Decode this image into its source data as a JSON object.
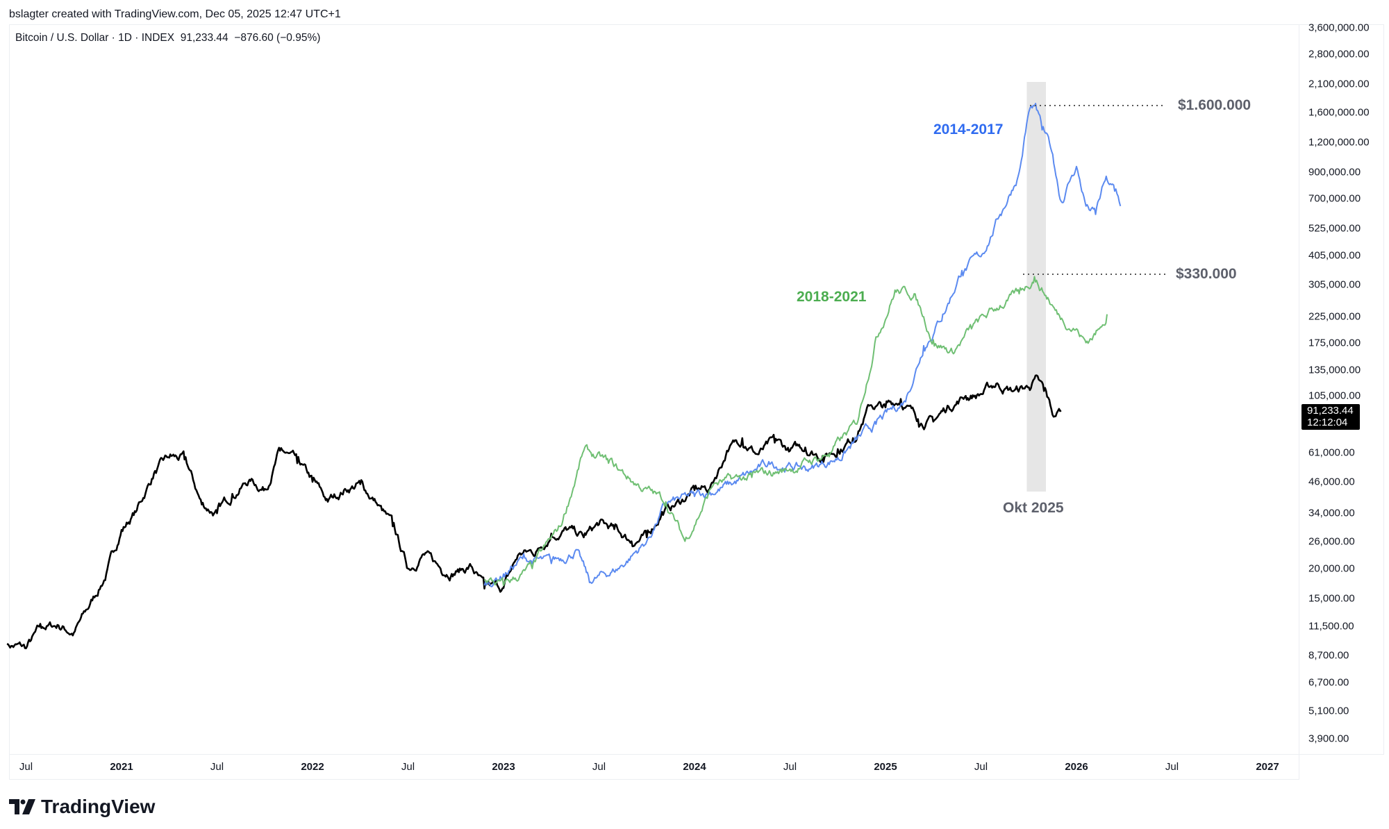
{
  "header": {
    "credit": "bslagter created with TradingView.com, Dec 05, 2025 12:47 UTC+1",
    "legend": "Bitcoin / U.S. Dollar · 1D · INDEX  91,233.44  −876.60 (−0.95%)"
  },
  "price_tag": {
    "price": "91,233.44",
    "countdown": "12:12:04"
  },
  "footer": {
    "logo_text": "TradingView"
  },
  "colors": {
    "btc": "#000000",
    "blue": "#5b8af0",
    "green": "#6fbf73",
    "blue_text": "#2f6bf0",
    "green_text": "#4cad50",
    "gray_text": "#5d606b",
    "band": "#e6e6e6"
  },
  "chart_data": {
    "type": "line",
    "title": "Bitcoin / U.S. Dollar · 1D · INDEX",
    "yscale": "log",
    "ylim": [
      3500,
      3800000
    ],
    "xlim": [
      2020.35,
      2027.1
    ],
    "y_ticks": [
      {
        "v": 3600000,
        "l": "3,600,000.00"
      },
      {
        "v": 2800000,
        "l": "2,800,000.00"
      },
      {
        "v": 2100000,
        "l": "2,100,000.00"
      },
      {
        "v": 1600000,
        "l": "1,600,000.00"
      },
      {
        "v": 1200000,
        "l": "1,200,000.00"
      },
      {
        "v": 900000,
        "l": "900,000.00"
      },
      {
        "v": 700000,
        "l": "700,000.00"
      },
      {
        "v": 525000,
        "l": "525,000.00"
      },
      {
        "v": 405000,
        "l": "405,000.00"
      },
      {
        "v": 305000,
        "l": "305,000.00"
      },
      {
        "v": 225000,
        "l": "225,000.00"
      },
      {
        "v": 175000,
        "l": "175,000.00"
      },
      {
        "v": 135000,
        "l": "135,000.00"
      },
      {
        "v": 105000,
        "l": "105,000.00"
      },
      {
        "v": 61000,
        "l": "61,000.00"
      },
      {
        "v": 46000,
        "l": "46,000.00"
      },
      {
        "v": 34000,
        "l": "34,000.00"
      },
      {
        "v": 26000,
        "l": "26,000.00"
      },
      {
        "v": 20000,
        "l": "20,000.00"
      },
      {
        "v": 15000,
        "l": "15,000.00"
      },
      {
        "v": 11500,
        "l": "11,500.00"
      },
      {
        "v": 8700,
        "l": "8,700.00"
      },
      {
        "v": 6700,
        "l": "6,700.00"
      },
      {
        "v": 5100,
        "l": "5,100.00"
      },
      {
        "v": 3900,
        "l": "3,900.00"
      }
    ],
    "x_ticks": [
      {
        "t": 2020.5,
        "l": "Jul",
        "year": false
      },
      {
        "t": 2021,
        "l": "2021",
        "year": true
      },
      {
        "t": 2021.5,
        "l": "Jul",
        "year": false
      },
      {
        "t": 2022,
        "l": "2022",
        "year": true
      },
      {
        "t": 2022.5,
        "l": "Jul",
        "year": false
      },
      {
        "t": 2023,
        "l": "2023",
        "year": true
      },
      {
        "t": 2023.5,
        "l": "Jul",
        "year": false
      },
      {
        "t": 2024,
        "l": "2024",
        "year": true
      },
      {
        "t": 2024.5,
        "l": "Jul",
        "year": false
      },
      {
        "t": 2025,
        "l": "2025",
        "year": true
      },
      {
        "t": 2025.5,
        "l": "Jul",
        "year": false
      },
      {
        "t": 2026,
        "l": "2026",
        "year": true
      },
      {
        "t": 2026.5,
        "l": "Jul",
        "year": false
      },
      {
        "t": 2027,
        "l": "2027",
        "year": true
      }
    ],
    "series": [
      {
        "name": "BTCUSD",
        "color_key": "btc",
        "points": [
          [
            2020.4,
            9700
          ],
          [
            2020.5,
            9300
          ],
          [
            2020.58,
            11300
          ],
          [
            2020.67,
            11600
          ],
          [
            2020.75,
            10800
          ],
          [
            2020.83,
            13800
          ],
          [
            2020.92,
            19000
          ],
          [
            2021.0,
            29000
          ],
          [
            2021.08,
            35000
          ],
          [
            2021.17,
            50000
          ],
          [
            2021.25,
            58000
          ],
          [
            2021.33,
            57000
          ],
          [
            2021.42,
            37000
          ],
          [
            2021.5,
            34000
          ],
          [
            2021.58,
            41000
          ],
          [
            2021.67,
            47000
          ],
          [
            2021.75,
            43000
          ],
          [
            2021.83,
            62000
          ],
          [
            2021.92,
            55000
          ],
          [
            2022.0,
            46000
          ],
          [
            2022.08,
            38000
          ],
          [
            2022.17,
            43000
          ],
          [
            2022.25,
            45000
          ],
          [
            2022.33,
            38000
          ],
          [
            2022.42,
            30000
          ],
          [
            2022.5,
            20000
          ],
          [
            2022.58,
            23000
          ],
          [
            2022.67,
            20000
          ],
          [
            2022.75,
            19500
          ],
          [
            2022.83,
            20500
          ],
          [
            2022.9,
            16500
          ],
          [
            2023.0,
            16600
          ],
          [
            2023.08,
            23000
          ],
          [
            2023.17,
            23500
          ],
          [
            2023.25,
            28000
          ],
          [
            2023.33,
            29000
          ],
          [
            2023.42,
            27000
          ],
          [
            2023.5,
            30500
          ],
          [
            2023.58,
            29200
          ],
          [
            2023.67,
            26000
          ],
          [
            2023.75,
            27000
          ],
          [
            2023.83,
            34500
          ],
          [
            2023.92,
            37700
          ],
          [
            2024.0,
            42500
          ],
          [
            2024.08,
            43000
          ],
          [
            2024.17,
            62000
          ],
          [
            2024.25,
            70000
          ],
          [
            2024.33,
            60000
          ],
          [
            2024.42,
            67000
          ],
          [
            2024.5,
            62000
          ],
          [
            2024.58,
            64000
          ],
          [
            2024.67,
            59000
          ],
          [
            2024.75,
            63000
          ],
          [
            2024.83,
            70000
          ],
          [
            2024.92,
            96000
          ],
          [
            2025.0,
            94000
          ],
          [
            2025.08,
            102000
          ],
          [
            2025.17,
            84000
          ],
          [
            2025.25,
            82000
          ],
          [
            2025.33,
            95000
          ],
          [
            2025.42,
            105000
          ],
          [
            2025.5,
            107000
          ],
          [
            2025.58,
            118000
          ],
          [
            2025.67,
            110000
          ],
          [
            2025.75,
            114000
          ],
          [
            2025.78,
            124000
          ],
          [
            2025.83,
            110000
          ],
          [
            2025.88,
            86000
          ],
          [
            2025.92,
            91233
          ]
        ]
      },
      {
        "name": "2014-2017",
        "color_key": "blue",
        "points": [
          [
            2022.9,
            17000
          ],
          [
            2023.0,
            19000
          ],
          [
            2023.1,
            22000
          ],
          [
            2023.25,
            21000
          ],
          [
            2023.38,
            24000
          ],
          [
            2023.45,
            17500
          ],
          [
            2023.6,
            20000
          ],
          [
            2023.75,
            26000
          ],
          [
            2023.85,
            37000
          ],
          [
            2024.0,
            40000
          ],
          [
            2024.2,
            45000
          ],
          [
            2024.4,
            55000
          ],
          [
            2024.6,
            52000
          ],
          [
            2024.75,
            58000
          ],
          [
            2024.95,
            80000
          ],
          [
            2025.1,
            100000
          ],
          [
            2025.2,
            170000
          ],
          [
            2025.3,
            230000
          ],
          [
            2025.4,
            350000
          ],
          [
            2025.5,
            400000
          ],
          [
            2025.6,
            600000
          ],
          [
            2025.7,
            900000
          ],
          [
            2025.75,
            1600000
          ],
          [
            2025.78,
            1700000
          ],
          [
            2025.82,
            1350000
          ],
          [
            2025.87,
            1100000
          ],
          [
            2025.92,
            680000
          ],
          [
            2025.97,
            850000
          ],
          [
            2026.0,
            950000
          ],
          [
            2026.05,
            650000
          ],
          [
            2026.1,
            600000
          ],
          [
            2026.15,
            830000
          ],
          [
            2026.2,
            750000
          ],
          [
            2026.23,
            650000
          ]
        ]
      },
      {
        "name": "2018-2021",
        "color_key": "green",
        "points": [
          [
            2022.9,
            18000
          ],
          [
            2023.0,
            17000
          ],
          [
            2023.15,
            20000
          ],
          [
            2023.3,
            30000
          ],
          [
            2023.42,
            62000
          ],
          [
            2023.55,
            55000
          ],
          [
            2023.7,
            45000
          ],
          [
            2023.85,
            38000
          ],
          [
            2023.95,
            26000
          ],
          [
            2024.1,
            45000
          ],
          [
            2024.3,
            48000
          ],
          [
            2024.5,
            52000
          ],
          [
            2024.7,
            60000
          ],
          [
            2024.85,
            80000
          ],
          [
            2024.95,
            185000
          ],
          [
            2025.05,
            290000
          ],
          [
            2025.15,
            280000
          ],
          [
            2025.25,
            180000
          ],
          [
            2025.35,
            160000
          ],
          [
            2025.45,
            200000
          ],
          [
            2025.6,
            250000
          ],
          [
            2025.7,
            280000
          ],
          [
            2025.78,
            330000
          ],
          [
            2025.85,
            270000
          ],
          [
            2025.9,
            230000
          ],
          [
            2026.0,
            200000
          ],
          [
            2026.05,
            175000
          ],
          [
            2026.12,
            200000
          ],
          [
            2026.16,
            230000
          ]
        ]
      }
    ],
    "annotations": {
      "label_2014": "2014-2017",
      "label_2018": "2018-2021",
      "level_high": {
        "value": 1700000,
        "label": "$1.600.000"
      },
      "level_low": {
        "value": 340000,
        "label": "$330.000"
      },
      "band": {
        "from": 2025.74,
        "to": 2025.84,
        "label": "Okt 2025"
      }
    }
  }
}
